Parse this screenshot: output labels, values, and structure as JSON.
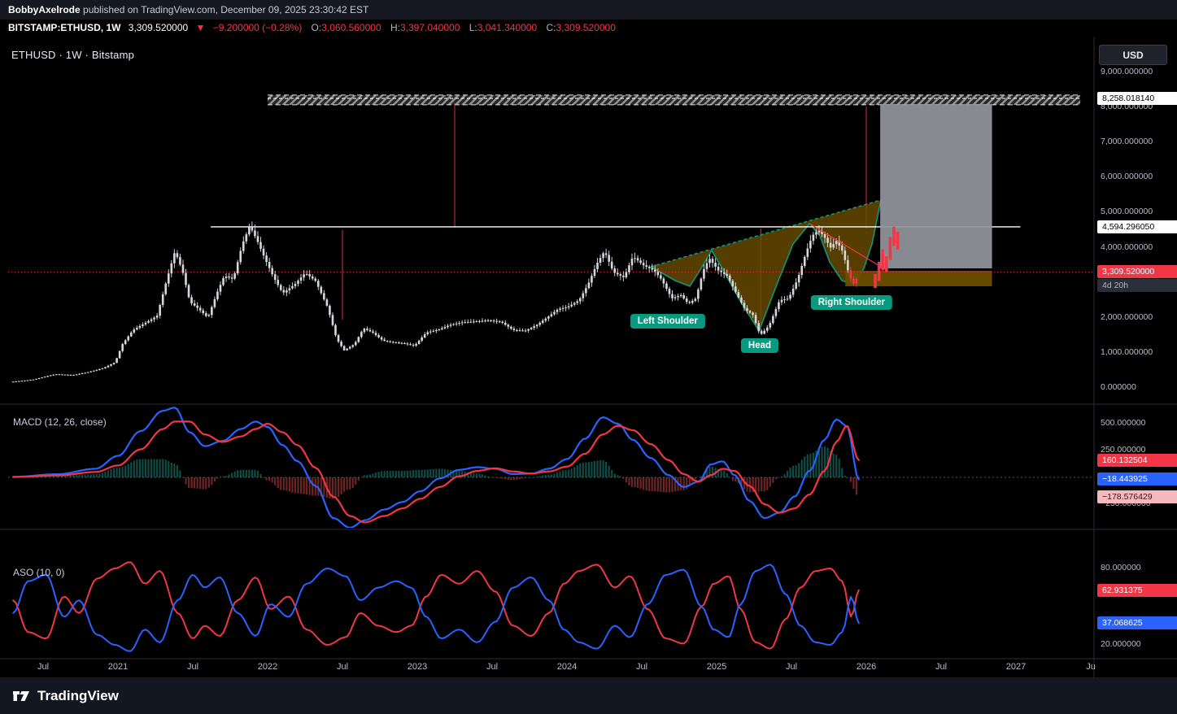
{
  "page": {
    "publisher": "BobbyAxelrode",
    "published_suffix": " published on TradingView.com, December 09, 2025 23:30:42 EST"
  },
  "symbol_bar": {
    "symbol": "BITSTAMP:ETHUSD, 1W",
    "last": "3,309.520000",
    "direction": "▼",
    "change": "−9.200000 (−0.28%)",
    "o_label": "O:",
    "o": "3,060.560000",
    "h_label": "H:",
    "h": "3,397.040000",
    "l_label": "L:",
    "l": "3,041.340000",
    "c_label": "C:",
    "c": "3,309.520000"
  },
  "chart": {
    "legend": "ETHUSD · 1W · Bitstamp",
    "currency_button": "USD",
    "macd_label": "MACD (12, 26, close)",
    "aso_label": "ASO (10, 0)"
  },
  "price_axis": {
    "ticks": [
      {
        "value": 9000,
        "label": "9,000.000000"
      },
      {
        "value": 8000,
        "label": "8,000.000000"
      },
      {
        "value": 7000,
        "label": "7,000.000000"
      },
      {
        "value": 6000,
        "label": "6,000.000000"
      },
      {
        "value": 5000,
        "label": "5,000.000000"
      },
      {
        "value": 4000,
        "label": "4,000.000000"
      },
      {
        "value": 2000,
        "label": "2,000.000000"
      },
      {
        "value": 1000,
        "label": "1,000.000000"
      },
      {
        "value": 0,
        "label": "0.000000"
      }
    ],
    "badges": [
      {
        "value": 8258.01814,
        "label": "8,258.018140",
        "bg": "#ffffff",
        "fg": "#000000"
      },
      {
        "value": 4594.29605,
        "label": "4,594.296050",
        "bg": "#ffffff",
        "fg": "#000000"
      },
      {
        "value": 3309.52,
        "label": "3,309.520000",
        "bg": "#f23645",
        "fg": "#ffffff",
        "sub": "4d 20h"
      }
    ]
  },
  "macd_axis": {
    "ticks": [
      {
        "value": 500,
        "label": "500.000000"
      },
      {
        "value": 250,
        "label": "250.000000"
      },
      {
        "value": -250,
        "label": "−250.000000"
      }
    ],
    "badges": [
      {
        "value": 160.132504,
        "label": "160.132504",
        "bg": "#f23645",
        "fg": "#ffffff"
      },
      {
        "value": -18.443925,
        "label": "−18.443925",
        "bg": "#2962ff",
        "fg": "#ffffff"
      },
      {
        "value": -178.576429,
        "label": "−178.576429",
        "bg": "#f5b8bc",
        "fg": "#431015"
      }
    ]
  },
  "aso_axis": {
    "ticks": [
      {
        "value": 80,
        "label": "80.000000"
      },
      {
        "value": 20,
        "label": "20.000000"
      }
    ],
    "badges": [
      {
        "value": 62.931375,
        "label": "62.931375",
        "bg": "#f23645",
        "fg": "#ffffff"
      },
      {
        "value": 37.068625,
        "label": "37.068625",
        "bg": "#2962ff",
        "fg": "#ffffff"
      }
    ]
  },
  "time_axis": {
    "labels": [
      {
        "t": 2020.5,
        "label": "Jul"
      },
      {
        "t": 2021.0,
        "label": "2021"
      },
      {
        "t": 2021.5,
        "label": "Jul"
      },
      {
        "t": 2022.0,
        "label": "2022"
      },
      {
        "t": 2022.5,
        "label": "Jul"
      },
      {
        "t": 2023.0,
        "label": "2023"
      },
      {
        "t": 2023.5,
        "label": "Jul"
      },
      {
        "t": 2024.0,
        "label": "2024"
      },
      {
        "t": 2024.5,
        "label": "Jul"
      },
      {
        "t": 2025.0,
        "label": "2025"
      },
      {
        "t": 2025.5,
        "label": "Jul"
      },
      {
        "t": 2026.0,
        "label": "2026"
      },
      {
        "t": 2026.5,
        "label": "Jul"
      },
      {
        "t": 2027.0,
        "label": "2027"
      },
      {
        "t": 2027.5,
        "label": "Ju"
      }
    ]
  },
  "footer": {
    "brand": "TradingView"
  },
  "chart_data": {
    "type": "candlestick+indicators",
    "title": "ETHUSD · 1W · Bitstamp",
    "symbol": "BITSTAMP:ETHUSD",
    "timeframe": "1W",
    "ohlc_current": {
      "open": 3060.56,
      "high": 3397.04,
      "low": 3041.34,
      "close": 3309.52,
      "change": -9.2,
      "change_pct": -0.28
    },
    "price": {
      "ylim": [
        0,
        9000
      ],
      "x_domain_years": [
        2020.3,
        2027.45
      ],
      "anchors": [
        [
          2020.3,
          170
        ],
        [
          2020.45,
          235
        ],
        [
          2020.6,
          390
        ],
        [
          2020.72,
          365
        ],
        [
          2020.82,
          450
        ],
        [
          2020.92,
          560
        ],
        [
          2021.0,
          730
        ],
        [
          2021.05,
          1250
        ],
        [
          2021.12,
          1650
        ],
        [
          2021.2,
          1850
        ],
        [
          2021.28,
          2050
        ],
        [
          2021.34,
          3000
        ],
        [
          2021.4,
          3900
        ],
        [
          2021.45,
          3350
        ],
        [
          2021.5,
          2450
        ],
        [
          2021.56,
          2250
        ],
        [
          2021.62,
          2000
        ],
        [
          2021.68,
          2700
        ],
        [
          2021.73,
          3200
        ],
        [
          2021.79,
          3100
        ],
        [
          2021.85,
          4100
        ],
        [
          2021.9,
          4620
        ],
        [
          2021.95,
          4200
        ],
        [
          2022.0,
          3700
        ],
        [
          2022.06,
          3150
        ],
        [
          2022.12,
          2700
        ],
        [
          2022.2,
          2950
        ],
        [
          2022.27,
          3280
        ],
        [
          2022.34,
          3050
        ],
        [
          2022.42,
          2300
        ],
        [
          2022.48,
          1400
        ],
        [
          2022.53,
          1070
        ],
        [
          2022.6,
          1250
        ],
        [
          2022.66,
          1700
        ],
        [
          2022.72,
          1580
        ],
        [
          2022.79,
          1350
        ],
        [
          2022.86,
          1300
        ],
        [
          2022.93,
          1270
        ],
        [
          2023.0,
          1200
        ],
        [
          2023.08,
          1580
        ],
        [
          2023.16,
          1660
        ],
        [
          2023.24,
          1800
        ],
        [
          2023.32,
          1870
        ],
        [
          2023.42,
          1900
        ],
        [
          2023.5,
          1930
        ],
        [
          2023.58,
          1880
        ],
        [
          2023.66,
          1650
        ],
        [
          2023.74,
          1630
        ],
        [
          2023.82,
          1800
        ],
        [
          2023.9,
          2050
        ],
        [
          2023.96,
          2250
        ],
        [
          2024.02,
          2300
        ],
        [
          2024.1,
          2500
        ],
        [
          2024.16,
          2950
        ],
        [
          2024.22,
          3550
        ],
        [
          2024.27,
          3900
        ],
        [
          2024.33,
          3300
        ],
        [
          2024.4,
          3150
        ],
        [
          2024.46,
          3750
        ],
        [
          2024.53,
          3500
        ],
        [
          2024.6,
          3350
        ],
        [
          2024.65,
          3100
        ],
        [
          2024.72,
          2550
        ],
        [
          2024.78,
          2650
        ],
        [
          2024.83,
          2400
        ],
        [
          2024.88,
          2550
        ],
        [
          2024.93,
          3350
        ],
        [
          2024.97,
          3700
        ],
        [
          2025.03,
          3350
        ],
        [
          2025.09,
          3200
        ],
        [
          2025.15,
          2700
        ],
        [
          2025.21,
          2230
        ],
        [
          2025.26,
          2100
        ],
        [
          2025.31,
          1500
        ],
        [
          2025.37,
          1780
        ],
        [
          2025.44,
          2500
        ],
        [
          2025.5,
          2550
        ],
        [
          2025.56,
          3100
        ],
        [
          2025.62,
          3900
        ],
        [
          2025.66,
          4350
        ],
        [
          2025.7,
          4500
        ],
        [
          2025.74,
          4300
        ],
        [
          2025.78,
          4000
        ],
        [
          2025.82,
          4200
        ],
        [
          2025.86,
          3900
        ],
        [
          2025.9,
          3300
        ],
        [
          2025.93,
          2950
        ],
        [
          2025.96,
          3150
        ]
      ]
    },
    "projection_bars": [
      [
        2026.06,
        2850,
        3250
      ],
      [
        2026.085,
        3050,
        3600
      ],
      [
        2026.11,
        3350,
        3950
      ],
      [
        2026.135,
        3300,
        3750
      ],
      [
        2026.16,
        3650,
        4300
      ],
      [
        2026.185,
        4050,
        4600
      ],
      [
        2026.21,
        3950,
        4450
      ]
    ],
    "macd": {
      "label": "MACD (12, 26, close)",
      "last": {
        "macd": -18.443925,
        "signal": 160.132504,
        "histogram": -178.576429
      },
      "anchors": [
        [
          2020.3,
          5,
          4
        ],
        [
          2020.6,
          30,
          18
        ],
        [
          2020.85,
          80,
          50
        ],
        [
          2021.0,
          200,
          110
        ],
        [
          2021.15,
          430,
          260
        ],
        [
          2021.3,
          620,
          450
        ],
        [
          2021.38,
          650,
          520
        ],
        [
          2021.48,
          420,
          520
        ],
        [
          2021.58,
          290,
          400
        ],
        [
          2021.7,
          340,
          330
        ],
        [
          2021.82,
          450,
          380
        ],
        [
          2021.92,
          520,
          450
        ],
        [
          2022.0,
          470,
          500
        ],
        [
          2022.1,
          300,
          420
        ],
        [
          2022.2,
          150,
          300
        ],
        [
          2022.32,
          -80,
          90
        ],
        [
          2022.44,
          -380,
          -180
        ],
        [
          2022.55,
          -470,
          -360
        ],
        [
          2022.65,
          -400,
          -420
        ],
        [
          2022.78,
          -300,
          -360
        ],
        [
          2022.9,
          -230,
          -290
        ],
        [
          2023.02,
          -130,
          -200
        ],
        [
          2023.15,
          -10,
          -90
        ],
        [
          2023.28,
          70,
          10
        ],
        [
          2023.4,
          95,
          60
        ],
        [
          2023.52,
          80,
          85
        ],
        [
          2023.64,
          30,
          55
        ],
        [
          2023.76,
          35,
          35
        ],
        [
          2023.88,
          80,
          55
        ],
        [
          2024.0,
          170,
          100
        ],
        [
          2024.12,
          360,
          220
        ],
        [
          2024.24,
          560,
          400
        ],
        [
          2024.34,
          500,
          480
        ],
        [
          2024.44,
          350,
          440
        ],
        [
          2024.56,
          180,
          310
        ],
        [
          2024.68,
          20,
          160
        ],
        [
          2024.78,
          -90,
          30
        ],
        [
          2024.88,
          -40,
          -40
        ],
        [
          2024.96,
          120,
          20
        ],
        [
          2025.04,
          150,
          80
        ],
        [
          2025.12,
          20,
          60
        ],
        [
          2025.22,
          -220,
          -80
        ],
        [
          2025.32,
          -380,
          -250
        ],
        [
          2025.42,
          -330,
          -330
        ],
        [
          2025.52,
          -180,
          -290
        ],
        [
          2025.62,
          60,
          -160
        ],
        [
          2025.72,
          350,
          60
        ],
        [
          2025.8,
          540,
          330
        ],
        [
          2025.87,
          480,
          480
        ],
        [
          2025.95,
          -18.443925,
          160.132504
        ]
      ]
    },
    "aso": {
      "label": "ASO (10, 0)",
      "last": {
        "bulls": 62.931375,
        "bears": 37.068625
      },
      "anchors": [
        [
          2020.3,
          55
        ],
        [
          2020.4,
          30
        ],
        [
          2020.52,
          25
        ],
        [
          2020.64,
          58
        ],
        [
          2020.74,
          45
        ],
        [
          2020.86,
          72
        ],
        [
          2020.98,
          80
        ],
        [
          2021.08,
          85
        ],
        [
          2021.18,
          68
        ],
        [
          2021.28,
          78
        ],
        [
          2021.4,
          45
        ],
        [
          2021.5,
          25
        ],
        [
          2021.58,
          35
        ],
        [
          2021.68,
          27
        ],
        [
          2021.8,
          55
        ],
        [
          2021.92,
          73
        ],
        [
          2022.02,
          48
        ],
        [
          2022.14,
          58
        ],
        [
          2022.26,
          32
        ],
        [
          2022.4,
          20
        ],
        [
          2022.52,
          26
        ],
        [
          2022.62,
          45
        ],
        [
          2022.74,
          35
        ],
        [
          2022.86,
          30
        ],
        [
          2022.96,
          35
        ],
        [
          2023.06,
          58
        ],
        [
          2023.16,
          75
        ],
        [
          2023.28,
          68
        ],
        [
          2023.4,
          78
        ],
        [
          2023.52,
          62
        ],
        [
          2023.64,
          35
        ],
        [
          2023.76,
          27
        ],
        [
          2023.88,
          45
        ],
        [
          2023.98,
          68
        ],
        [
          2024.08,
          78
        ],
        [
          2024.2,
          83
        ],
        [
          2024.32,
          65
        ],
        [
          2024.42,
          74
        ],
        [
          2024.54,
          48
        ],
        [
          2024.66,
          25
        ],
        [
          2024.78,
          21
        ],
        [
          2024.9,
          50
        ],
        [
          2024.98,
          68
        ],
        [
          2025.08,
          74
        ],
        [
          2025.16,
          48
        ],
        [
          2025.26,
          22
        ],
        [
          2025.36,
          17
        ],
        [
          2025.46,
          40
        ],
        [
          2025.56,
          65
        ],
        [
          2025.66,
          78
        ],
        [
          2025.76,
          80
        ],
        [
          2025.84,
          70
        ],
        [
          2025.9,
          42
        ],
        [
          2025.95,
          62.931375
        ]
      ]
    },
    "annotations": {
      "resistance": {
        "price": 4594.29605,
        "t1": 2021.62,
        "t2": 2027.03
      },
      "current_price": 3309.52,
      "target_band": {
        "p1": 8074,
        "p2": 8352,
        "t1": 2022.0,
        "t2": 2027.43,
        "level": 8258.01814
      },
      "vlines": [
        {
          "t": 2022.5,
          "p1": 1949,
          "p2": 4500
        },
        {
          "t": 2023.25,
          "p1": 4570,
          "p2": 8118
        },
        {
          "t": 2025.295,
          "p1": 1577,
          "p2": 4546
        },
        {
          "t": 2026.0,
          "p1": 4546,
          "p2": 8025
        }
      ],
      "neckline": [
        [
          2024.56,
          3456
        ],
        [
          2026.098,
          5358
        ]
      ],
      "pattern_path": [
        [
          2024.56,
          3456
        ],
        [
          2024.723,
          3062
        ],
        [
          2024.821,
          2899
        ],
        [
          2024.897,
          3410
        ],
        [
          2024.967,
          3920
        ],
        [
          2025.038,
          3410
        ],
        [
          2025.158,
          2482
        ],
        [
          2025.283,
          1624
        ],
        [
          2025.402,
          2946
        ],
        [
          2025.511,
          4105
        ],
        [
          2025.62,
          4685
        ],
        [
          2025.69,
          4337
        ],
        [
          2025.755,
          3595
        ],
        [
          2025.837,
          3062
        ],
        [
          2025.918,
          2946
        ],
        [
          2025.984,
          3410
        ],
        [
          2026.038,
          4105
        ],
        [
          2026.098,
          5358
        ]
      ],
      "breakdown_line": [
        [
          2025.62,
          4685
        ],
        [
          2026.14,
          3347
        ]
      ],
      "support_zone": {
        "t1": 2025.86,
        "t2": 2026.84,
        "p1": 2899,
        "p2": 3340
      },
      "projection_box": {
        "t1": 2026.093,
        "t2": 2026.84,
        "p1": 3409,
        "p2": 8097
      },
      "pattern_labels": [
        {
          "label": "Left Shoulder",
          "t": 2024.673,
          "price": 1902
        },
        {
          "label": "Head",
          "t": 2025.288,
          "price": 1206
        },
        {
          "label": "Right Shoulder",
          "t": 2025.902,
          "price": 2436
        }
      ]
    },
    "colors": {
      "up_down_bar": "#d6d8dc",
      "highlight_bar": "#f23645",
      "macd_line": "#2962ff",
      "signal_line": "#f23645",
      "hist_pos": "#26a69a",
      "hist_neg": "#ef5350",
      "aso_bulls": "#f23645",
      "aso_bears": "#2962ff",
      "pattern_fill": "#6b4e00",
      "pattern_edge": "#089981",
      "projection_box": "#94969e",
      "accent_red": "#f23645"
    }
  }
}
